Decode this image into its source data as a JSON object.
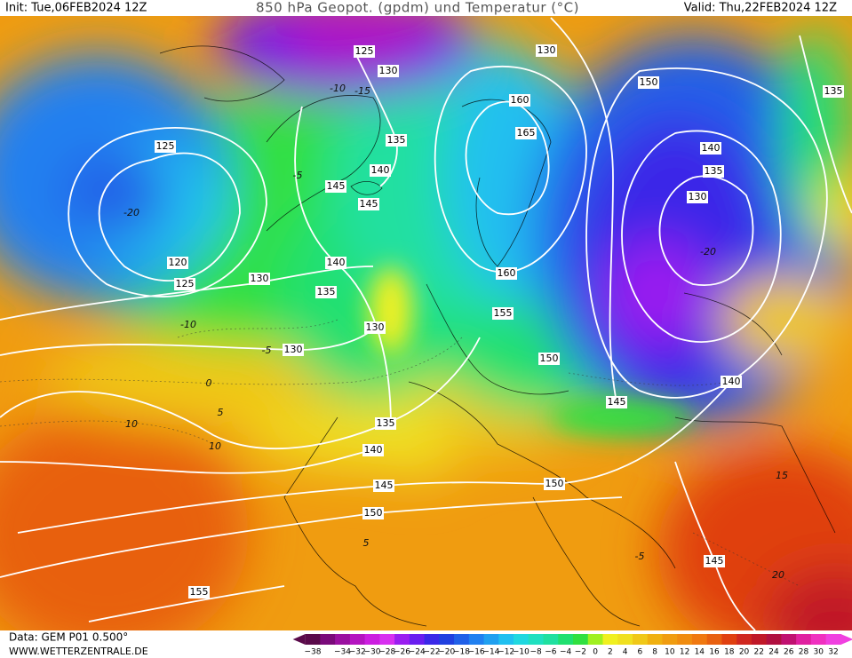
{
  "header": {
    "init": "Init: Tue,06FEB2024 12Z",
    "title": "850 hPa Geopot. (gpdm) und Temperatur (°C)",
    "valid": "Valid: Thu,22FEB2024 12Z"
  },
  "footer": {
    "data": "Data: GEM P01 0.500°",
    "website": "WWW.WETTERZENTRALE.DE"
  },
  "colorbar": {
    "ticks": [
      {
        "value": -38,
        "label": "−38"
      },
      {
        "value": -34,
        "label": "−34"
      },
      {
        "value": -32,
        "label": "−32"
      },
      {
        "value": -30,
        "label": "−30"
      },
      {
        "value": -28,
        "label": "−28"
      },
      {
        "value": -26,
        "label": "−26"
      },
      {
        "value": -24,
        "label": "−24"
      },
      {
        "value": -22,
        "label": "−22"
      },
      {
        "value": -20,
        "label": "−20"
      },
      {
        "value": -18,
        "label": "−18"
      },
      {
        "value": -16,
        "label": "−16"
      },
      {
        "value": -14,
        "label": "−14"
      },
      {
        "value": -12,
        "label": "−12"
      },
      {
        "value": -10,
        "label": "−10"
      },
      {
        "value": -8,
        "label": "−8"
      },
      {
        "value": -6,
        "label": "−6"
      },
      {
        "value": -4,
        "label": "−4"
      },
      {
        "value": -2,
        "label": "−2"
      },
      0,
      2,
      4,
      6,
      8,
      10,
      12,
      14,
      16,
      18,
      20,
      22,
      24,
      26,
      28,
      30,
      32
    ],
    "colors": [
      "#5a0a4a",
      "#7a0a7a",
      "#9a10a0",
      "#b414c0",
      "#cc1ee0",
      "#d830f0",
      "#9a1ef0",
      "#6a1ef0",
      "#3a28e8",
      "#2040e0",
      "#2060e8",
      "#2080f0",
      "#20a0f0",
      "#20c0f0",
      "#20d8e0",
      "#20e0c0",
      "#20e0a0",
      "#20e070",
      "#30e040",
      "#a0f020",
      "#f0f020",
      "#f0e020",
      "#f0c818",
      "#f0b010",
      "#f09c10",
      "#f08c10",
      "#f07810",
      "#e86010",
      "#e04010",
      "#d02820",
      "#c01828",
      "#b01040",
      "#c01070",
      "#e020a0",
      "#f030c0",
      "#f040e0"
    ]
  },
  "geopotential_labels": [
    125,
    130,
    130,
    150,
    135,
    160,
    165,
    135,
    140,
    145,
    145,
    125,
    140,
    135,
    130,
    120,
    125,
    130,
    140,
    135,
    160,
    155,
    130,
    130,
    150,
    140,
    145,
    135,
    140,
    145,
    150,
    150,
    145,
    155
  ],
  "temperature_labels": [
    {
      "value": -10,
      "label": "-10"
    },
    {
      "value": -15,
      "label": "-15"
    },
    {
      "value": -5,
      "label": "-5"
    },
    {
      "value": -20,
      "label": "-20"
    },
    {
      "value": -10,
      "label": "-10"
    },
    {
      "value": 0,
      "label": "0"
    },
    {
      "value": 5,
      "label": "5"
    },
    {
      "value": 10,
      "label": "10"
    },
    {
      "value": 10,
      "label": "10"
    },
    {
      "value": 5,
      "label": "5"
    },
    {
      "value": -5,
      "label": "-5"
    },
    {
      "value": 15,
      "label": "15"
    },
    {
      "value": 20,
      "label": "20"
    },
    {
      "value": -20,
      "label": "-20"
    },
    {
      "value": -5,
      "label": "-5"
    }
  ]
}
